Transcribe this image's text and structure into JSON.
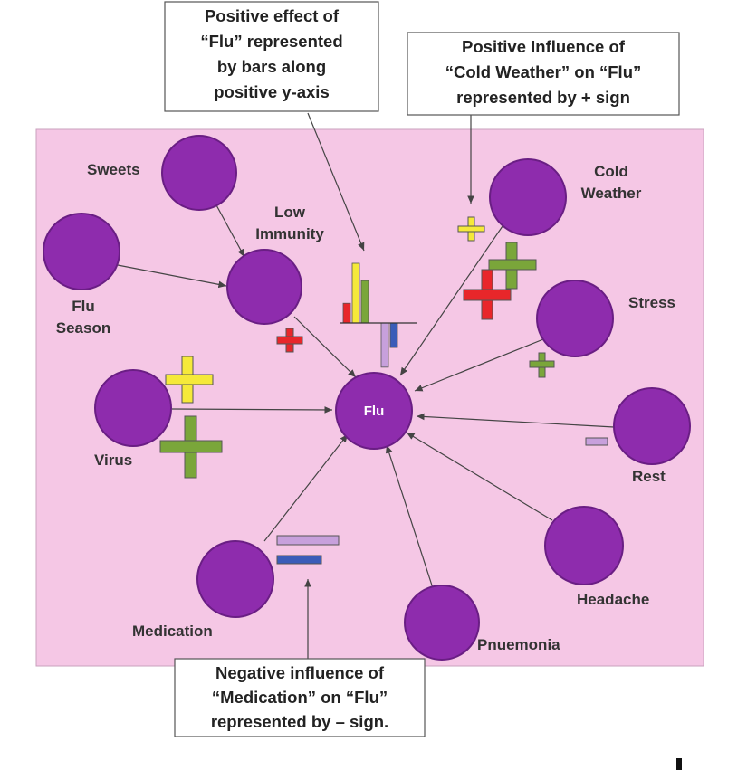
{
  "colors": {
    "background": "#f5c7e5",
    "node": "#8e2cad",
    "node_stroke": "#6a1e84",
    "arrow": "#444444",
    "red": "#e8262a",
    "yellow": "#f5e93a",
    "green": "#7aa63a",
    "lavender": "#c7a0dc",
    "blue": "#3a5cb8"
  },
  "callouts": {
    "top_left": [
      "Positive effect of",
      "“Flu” represented",
      "by bars along",
      "positive y-axis"
    ],
    "top_right": [
      "Positive Influence of",
      "“Cold Weather” on “Flu”",
      "represented by + sign"
    ],
    "bottom": [
      "Negative influence of",
      "“Medication” on “Flu”",
      "represented by – sign."
    ]
  },
  "nodes": {
    "flu": "Flu",
    "sweets": "Sweets",
    "low_immunity": [
      "Low",
      "Immunity"
    ],
    "flu_season": [
      "Flu",
      "Season"
    ],
    "virus": "Virus",
    "cold_weather": [
      "Cold",
      "Weather"
    ],
    "stress": "Stress",
    "rest": "Rest",
    "headache": "Headache",
    "pneumonia": "Pnuemonia",
    "medication": "Medication"
  },
  "influence_signs": [
    {
      "source": "Low Immunity",
      "sign": "+",
      "color": "red"
    },
    {
      "source": "Virus",
      "sign": "+",
      "color": "yellow"
    },
    {
      "source": "Virus",
      "sign": "+",
      "color": "green"
    },
    {
      "source": "Cold Weather",
      "sign": "+",
      "color": "yellow"
    },
    {
      "source": "Cold Weather",
      "sign": "+",
      "color": "green"
    },
    {
      "source": "Cold Weather",
      "sign": "+",
      "color": "red"
    },
    {
      "source": "Stress",
      "sign": "+",
      "color": "green"
    },
    {
      "source": "Rest",
      "sign": "−",
      "color": "lavender"
    },
    {
      "source": "Medication",
      "sign": "−",
      "color": "lavender"
    },
    {
      "source": "Medication",
      "sign": "−",
      "color": "blue"
    }
  ],
  "effect_bars": [
    {
      "color": "red",
      "value": 0.33
    },
    {
      "color": "yellow",
      "value": 1.0
    },
    {
      "color": "green",
      "value": 0.71
    },
    {
      "color": "lavender",
      "value": -0.74
    },
    {
      "color": "blue",
      "value": -0.41
    }
  ]
}
